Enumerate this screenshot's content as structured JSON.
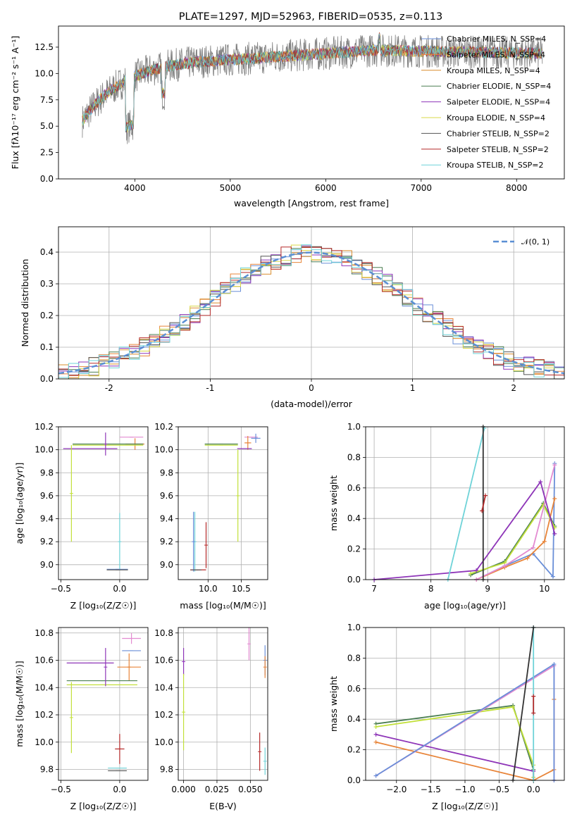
{
  "chart_data": [
    {
      "type": "line",
      "title": "PLATE=1297, MJD=52963, FIBERID=0535, z=0.113",
      "xlabel": "wavelength [Angstrom, rest frame]",
      "ylabel": "Flux [fλ10⁻¹⁷ erg cm⁻² s⁻¹ A⁻¹]",
      "xlim": [
        3200,
        8500
      ],
      "ylim": [
        0,
        14.5
      ],
      "xticks": [
        4000,
        5000,
        6000,
        7000,
        8000
      ],
      "yticks": [
        0.0,
        2.5,
        5.0,
        7.5,
        10.0,
        12.5
      ],
      "grid": false,
      "legend_position": "right",
      "data_range": [
        3450,
        8270
      ],
      "series": [
        {
          "name": "Chabrier MILES, N_SSP=4",
          "color": "#6a8fd8"
        },
        {
          "name": "Salpeter MILES, N_SSP=4",
          "color": "#e8853a"
        },
        {
          "name": "Kroupa MILES, N_SSP=4",
          "color": "#d98c2b"
        },
        {
          "name": "Chabrier ELODIE, N_SSP=4",
          "color": "#4b7f52"
        },
        {
          "name": "Salpeter ELODIE, N_SSP=4",
          "color": "#8e35b8"
        },
        {
          "name": "Kroupa ELODIE, N_SSP=4",
          "color": "#d8d84a"
        },
        {
          "name": "Chabrier STELIB, N_SSP=2",
          "color": "#555555"
        },
        {
          "name": "Salpeter STELIB, N_SSP=2",
          "color": "#b52a2a"
        },
        {
          "name": "Kroupa STELIB, N_SSP=2",
          "color": "#6fd3d8"
        }
      ],
      "data_color": "#808080"
    },
    {
      "type": "line",
      "xlabel": "(data-model)/error",
      "ylabel": "Normed distribution",
      "xlim": [
        -2.5,
        2.5
      ],
      "ylim": [
        0,
        0.48
      ],
      "xticks": [
        -2,
        -1,
        0,
        1,
        2
      ],
      "yticks": [
        0.0,
        0.1,
        0.2,
        0.3,
        0.4
      ],
      "grid": true,
      "legend_position": "top-right",
      "reference_curve": {
        "name": "𝒩(0, 1)",
        "mean": 0,
        "sigma": 1,
        "color": "#5b8fd4"
      },
      "bin_width": 0.1,
      "histogram_colors": [
        "#6a8fd8",
        "#e8853a",
        "#d98c2b",
        "#4b7f52",
        "#8e35b8",
        "#d8d84a",
        "#555555",
        "#b52a2a",
        "#6fd3d8"
      ]
    },
    {
      "type": "scatter",
      "xlabel": "Z [log₁₀(Z/Z☉)]",
      "ylabel": "age  [log₁₀(age/yr)]",
      "xlim": [
        -0.52,
        0.24
      ],
      "ylim": [
        8.87,
        10.2
      ],
      "xticks": [
        -0.5,
        0.0
      ],
      "xtick_labels": [
        "−0.5",
        "0.0"
      ],
      "yticks": [
        9.0,
        9.2,
        9.4,
        9.6,
        9.8,
        10.0,
        10.2
      ],
      "ytick_labels": [
        "9.0",
        "9.2",
        "9.4",
        "9.6",
        "9.8",
        "10.0",
        "10.2"
      ],
      "grid": true,
      "points": [
        {
          "x": 0.1,
          "xerr": 0.1,
          "y": 10.11,
          "yerr": 0.0,
          "color": "#e38bd1"
        },
        {
          "x": 0.13,
          "xerr": 0.08,
          "y": 10.05,
          "yerr": 0.05,
          "color": "#e8853a"
        },
        {
          "x": -0.1,
          "xerr": 0.3,
          "y": 10.05,
          "yerr": 0.0,
          "color": "#4b7f52"
        },
        {
          "x": -0.1,
          "xerr": 0.3,
          "y": 10.04,
          "yerr": 0.0,
          "color": "#c2e03a"
        },
        {
          "x": -0.25,
          "xerr": 0.23,
          "y": 10.01,
          "yerr": 0.0,
          "color": "#8e35b8"
        },
        {
          "x": -0.12,
          "xerr": 0.0,
          "y": 10.05,
          "yerr": 0.1,
          "color": "#8e35b8"
        },
        {
          "x": -0.41,
          "xerr": 0.0,
          "y": 9.62,
          "yerr": 0.42,
          "color": "#c2e03a"
        },
        {
          "x": 0.0,
          "xerr": 0.0,
          "y": 9.2,
          "yerr": 0.25,
          "color": "#6fd3d8"
        },
        {
          "x": -0.02,
          "xerr": 0.09,
          "y": 8.96,
          "yerr": 0.0,
          "color": "#6a8fd8"
        },
        {
          "x": -0.02,
          "xerr": 0.09,
          "y": 8.955,
          "yerr": 0.0,
          "color": "#555555"
        }
      ]
    },
    {
      "type": "scatter",
      "xlabel": "mass [log₁₀(M/M☉)]",
      "xlim": [
        9.55,
        10.9
      ],
      "ylim": [
        8.87,
        10.2
      ],
      "xticks": [
        10.0,
        10.5
      ],
      "xtick_labels": [
        "10.0",
        "10.5"
      ],
      "yticks": [
        9.0,
        9.2,
        9.4,
        9.6,
        9.8,
        10.0,
        10.2
      ],
      "ytick_labels": [
        "9.0",
        "9.2",
        "9.4",
        "9.6",
        "9.8",
        "10.0",
        "10.2"
      ],
      "grid": true,
      "points": [
        {
          "x": 10.65,
          "xerr": 0.1,
          "y": 10.11,
          "yerr": 0.0,
          "color": "#e38bd1"
        },
        {
          "x": 10.6,
          "xerr": 0.05,
          "y": 10.06,
          "yerr": 0.06,
          "color": "#e8853a"
        },
        {
          "x": 10.72,
          "xerr": 0.07,
          "y": 10.1,
          "yerr": 0.04,
          "color": "#6a8fd8"
        },
        {
          "x": 10.2,
          "xerr": 0.25,
          "y": 10.05,
          "yerr": 0.0,
          "color": "#4b7f52"
        },
        {
          "x": 10.2,
          "xerr": 0.25,
          "y": 10.04,
          "yerr": 0.0,
          "color": "#c2e03a"
        },
        {
          "x": 10.55,
          "xerr": 0.11,
          "y": 10.01,
          "yerr": 0.0,
          "color": "#8e35b8"
        },
        {
          "x": 10.45,
          "xerr": 0.0,
          "y": 9.6,
          "yerr": 0.4,
          "color": "#c2e03a"
        },
        {
          "x": 9.97,
          "xerr": 0.0,
          "y": 9.17,
          "yerr": 0.2,
          "color": "#b52a2a"
        },
        {
          "x": 9.85,
          "xerr": 0.12,
          "y": 8.955,
          "yerr": 0.0,
          "color": "#b52a2a"
        },
        {
          "x": 9.8,
          "xerr": 0.0,
          "y": 9.2,
          "yerr": 0.26,
          "color": "#6fd3d8"
        },
        {
          "x": 9.78,
          "xerr": 0.0,
          "y": 9.2,
          "yerr": 0.26,
          "color": "#6a8fd8"
        },
        {
          "x": 9.82,
          "xerr": 0.08,
          "y": 8.955,
          "yerr": 0.0,
          "color": "#555555"
        }
      ]
    },
    {
      "type": "line",
      "xlabel": "age  [log₁₀(age/yr)]",
      "ylabel": "mass weight",
      "xlim": [
        6.85,
        10.35
      ],
      "ylim": [
        0,
        1.0
      ],
      "xticks": [
        7,
        8,
        9,
        10
      ],
      "yticks": [
        0.0,
        0.2,
        0.4,
        0.6,
        0.8,
        1.0
      ],
      "grid": true,
      "series": [
        {
          "color": "#6a8fd8",
          "x": [
            8.8,
            9.3,
            9.8,
            10.15,
            10.18
          ],
          "y": [
            0.0,
            0.09,
            0.17,
            0.02,
            0.76
          ]
        },
        {
          "color": "#e8853a",
          "x": [
            8.8,
            9.3,
            9.7,
            10.0,
            10.18
          ],
          "y": [
            0.0,
            0.08,
            0.14,
            0.25,
            0.53
          ]
        },
        {
          "color": "#4b7f52",
          "x": [
            8.7,
            9.3,
            9.98,
            10.18
          ],
          "y": [
            0.03,
            0.12,
            0.5,
            0.35
          ]
        },
        {
          "color": "#c2e03a",
          "x": [
            8.7,
            9.3,
            9.98,
            10.18
          ],
          "y": [
            0.04,
            0.11,
            0.49,
            0.34
          ]
        },
        {
          "color": "#e38bd1",
          "x": [
            8.8,
            9.3,
            9.8,
            10.18
          ],
          "y": [
            0.0,
            0.09,
            0.21,
            0.75
          ]
        },
        {
          "color": "#8e35b8",
          "x": [
            7.0,
            8.8,
            9.93,
            10.18
          ],
          "y": [
            0.0,
            0.06,
            0.64,
            0.3
          ]
        },
        {
          "color": "#6fd3d8",
          "x": [
            8.3,
            8.94
          ],
          "y": [
            0.0,
            0.99
          ]
        },
        {
          "color": "#333333",
          "x": [
            8.92,
            8.92
          ],
          "y": [
            0.0,
            1.0
          ]
        },
        {
          "color": "#b52a2a",
          "x": [
            8.9,
            8.96
          ],
          "y": [
            0.45,
            0.55
          ]
        }
      ]
    },
    {
      "type": "scatter",
      "xlabel": "Z [log₁₀(Z/Z☉)]",
      "ylabel": "mass [log₁₀(M/M☉)]",
      "xlim": [
        -0.52,
        0.24
      ],
      "ylim": [
        9.72,
        10.84
      ],
      "xticks": [
        -0.5,
        0.0
      ],
      "xtick_labels": [
        "−0.5",
        "0.0"
      ],
      "yticks": [
        9.8,
        10.0,
        10.2,
        10.4,
        10.6,
        10.8
      ],
      "ytick_labels": [
        "9.8",
        "10.0",
        "10.2",
        "10.4",
        "10.6",
        "10.8"
      ],
      "grid": true,
      "points": [
        {
          "x": 0.1,
          "xerr": 0.08,
          "y": 10.76,
          "yerr": 0.04,
          "color": "#e38bd1"
        },
        {
          "x": 0.1,
          "xerr": 0.08,
          "y": 10.67,
          "yerr": 0.0,
          "color": "#6a8fd8"
        },
        {
          "x": 0.08,
          "xerr": 0.1,
          "y": 10.55,
          "yerr": 0.1,
          "color": "#e8853a"
        },
        {
          "x": -0.15,
          "xerr": 0.3,
          "y": 10.45,
          "yerr": 0.0,
          "color": "#4b7f52"
        },
        {
          "x": -0.15,
          "xerr": 0.3,
          "y": 10.42,
          "yerr": 0.0,
          "color": "#c2e03a"
        },
        {
          "x": -0.25,
          "xerr": 0.2,
          "y": 10.58,
          "yerr": 0.0,
          "color": "#8e35b8"
        },
        {
          "x": -0.12,
          "xerr": 0.0,
          "y": 10.55,
          "yerr": 0.14,
          "color": "#8e35b8"
        },
        {
          "x": -0.41,
          "xerr": 0.0,
          "y": 10.18,
          "yerr": 0.26,
          "color": "#c2e03a"
        },
        {
          "x": 0.0,
          "xerr": 0.04,
          "y": 9.95,
          "yerr": 0.11,
          "color": "#b52a2a"
        },
        {
          "x": -0.02,
          "xerr": 0.08,
          "y": 9.81,
          "yerr": 0.0,
          "color": "#6fd3d8"
        },
        {
          "x": -0.02,
          "xerr": 0.08,
          "y": 9.79,
          "yerr": 0.0,
          "color": "#555555"
        }
      ]
    },
    {
      "type": "scatter",
      "xlabel": "E(B-V)",
      "xlim": [
        -0.004,
        0.063
      ],
      "ylim": [
        9.72,
        10.84
      ],
      "xticks": [
        0.0,
        0.025,
        0.05
      ],
      "xtick_labels": [
        "0.000",
        "0.025",
        "0.050"
      ],
      "yticks": [
        9.8,
        10.0,
        10.2,
        10.4,
        10.6,
        10.8
      ],
      "ytick_labels": [
        "9.8",
        "10.0",
        "10.2",
        "10.4",
        "10.6",
        "10.8"
      ],
      "grid": true,
      "points": [
        {
          "x": 0.0,
          "xerr": 0.0,
          "y": 10.59,
          "yerr": 0.1,
          "color": "#8e35b8"
        },
        {
          "x": 0.0,
          "xerr": 0.0,
          "y": 10.22,
          "yerr": 0.28,
          "color": "#c2e03a"
        },
        {
          "x": 0.049,
          "xerr": 0.0,
          "y": 10.72,
          "yerr": 0.12,
          "color": "#e38bd1"
        },
        {
          "x": 0.061,
          "xerr": 0.0,
          "y": 10.6,
          "yerr": 0.11,
          "color": "#6a8fd8"
        },
        {
          "x": 0.061,
          "xerr": 0.0,
          "y": 10.55,
          "yerr": 0.08,
          "color": "#e8853a"
        },
        {
          "x": 0.057,
          "xerr": 0.0,
          "y": 9.93,
          "yerr": 0.14,
          "color": "#b52a2a"
        },
        {
          "x": 0.061,
          "xerr": 0.0,
          "y": 9.86,
          "yerr": 0.1,
          "color": "#6fd3d8"
        }
      ]
    },
    {
      "type": "line",
      "xlabel": "Z [log₁₀(Z/Z☉)]",
      "ylabel": "mass weight",
      "xlim": [
        -2.45,
        0.45
      ],
      "ylim": [
        0,
        1.0
      ],
      "xticks": [
        -2.0,
        -1.5,
        -1.0,
        -0.5,
        0.0
      ],
      "xtick_labels": [
        "−2.0",
        "−1.5",
        "−1.0",
        "−0.5",
        "0.0"
      ],
      "yticks": [
        0.0,
        0.2,
        0.4,
        0.6,
        0.8,
        1.0
      ],
      "grid": true,
      "series": [
        {
          "color": "#4b7f52",
          "x": [
            -2.3,
            -0.3,
            0.0,
            0.0
          ],
          "y": [
            0.37,
            0.49,
            0.07,
            0.0
          ]
        },
        {
          "color": "#c2e03a",
          "x": [
            -2.3,
            -0.3,
            0.0,
            0.0
          ],
          "y": [
            0.35,
            0.48,
            0.1,
            0.02
          ]
        },
        {
          "color": "#8e35b8",
          "x": [
            -2.3,
            0.0,
            0.0
          ],
          "y": [
            0.3,
            0.06,
            0.0
          ]
        },
        {
          "color": "#e8853a",
          "x": [
            -2.3,
            0.0,
            0.3,
            0.3
          ],
          "y": [
            0.25,
            0.0,
            0.07,
            0.53
          ]
        },
        {
          "color": "#e38bd1",
          "x": [
            -2.3,
            0.3,
            0.3
          ],
          "y": [
            0.03,
            0.75,
            0.0
          ]
        },
        {
          "color": "#6a8fd8",
          "x": [
            -2.3,
            0.3,
            0.3
          ],
          "y": [
            0.03,
            0.76,
            0.0
          ]
        },
        {
          "color": "#6fd3d8",
          "x": [
            0.0,
            0.0
          ],
          "y": [
            0.0,
            1.0
          ]
        },
        {
          "color": "#333333",
          "x": [
            -0.3,
            0.0
          ],
          "y": [
            0.0,
            1.0
          ]
        },
        {
          "color": "#b52a2a",
          "x": [
            0.0,
            0.0
          ],
          "y": [
            0.44,
            0.55
          ]
        }
      ]
    }
  ]
}
